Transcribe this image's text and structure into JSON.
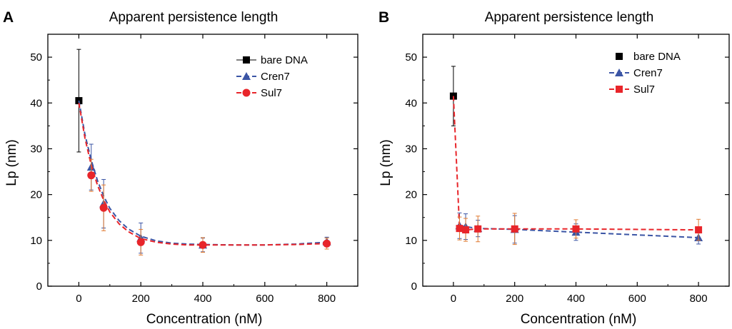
{
  "chart_data": [
    {
      "panel": "A",
      "type": "scatter",
      "title": "Apparent persistence length",
      "xlabel": "Concentration (nM)",
      "ylabel": "Lp (nm)",
      "xlim": [
        -100,
        900
      ],
      "ylim": [
        0,
        55
      ],
      "xticks": [
        0,
        200,
        400,
        600,
        800
      ],
      "yticks": [
        0,
        10,
        20,
        30,
        40,
        50
      ],
      "legend_position": "top-right",
      "series": [
        {
          "name": "bare DNA",
          "marker": "square",
          "color": "#000000",
          "line": "solid",
          "points": [
            {
              "x": 0,
              "y": 40.5,
              "err": 11.2
            }
          ]
        },
        {
          "name": "Cren7",
          "marker": "triangle",
          "color": "#3b55a5",
          "line": "dashed",
          "points": [
            {
              "x": 40,
              "y": 26.0,
              "err": 5.0
            },
            {
              "x": 80,
              "y": 18.0,
              "err": 5.3
            },
            {
              "x": 200,
              "y": 10.5,
              "err": 3.3
            },
            {
              "x": 400,
              "y": 9.0,
              "err": 1.5
            },
            {
              "x": 800,
              "y": 9.7,
              "err": 1.0
            }
          ],
          "fit": [
            [
              0,
              40.5
            ],
            [
              20,
              33.0
            ],
            [
              40,
              27.5
            ],
            [
              60,
              23.1
            ],
            [
              80,
              19.7
            ],
            [
              100,
              17.0
            ],
            [
              130,
              14.3
            ],
            [
              160,
              12.5
            ],
            [
              200,
              10.9
            ],
            [
              250,
              9.9
            ],
            [
              300,
              9.4
            ],
            [
              350,
              9.2
            ],
            [
              400,
              9.1
            ],
            [
              500,
              9.0
            ],
            [
              600,
              9.0
            ],
            [
              700,
              9.2
            ],
            [
              800,
              9.6
            ]
          ]
        },
        {
          "name": "Sul7",
          "marker": "circle",
          "color": "#e8252a",
          "line": "dashed",
          "points": [
            {
              "x": 40,
              "y": 24.2,
              "err": 3.5
            },
            {
              "x": 80,
              "y": 17.1,
              "err": 5.0
            },
            {
              "x": 200,
              "y": 9.6,
              "err": 2.8
            },
            {
              "x": 400,
              "y": 9.0,
              "err": 1.6
            },
            {
              "x": 800,
              "y": 9.3,
              "err": 1.2
            }
          ],
          "fit": [
            [
              0,
              40.0
            ],
            [
              20,
              32.2
            ],
            [
              40,
              26.4
            ],
            [
              60,
              22.1
            ],
            [
              80,
              18.8
            ],
            [
              100,
              16.2
            ],
            [
              130,
              13.6
            ],
            [
              160,
              11.9
            ],
            [
              200,
              10.4
            ],
            [
              250,
              9.6
            ],
            [
              300,
              9.2
            ],
            [
              350,
              9.0
            ],
            [
              400,
              9.0
            ],
            [
              500,
              9.0
            ],
            [
              600,
              9.0
            ],
            [
              700,
              9.1
            ],
            [
              800,
              9.3
            ]
          ]
        }
      ]
    },
    {
      "panel": "B",
      "type": "scatter",
      "title": "Apparent persistence length",
      "xlabel": "Concentration (nM)",
      "ylabel": "Lp (nm)",
      "xlim": [
        -100,
        900
      ],
      "ylim": [
        0,
        55
      ],
      "xticks": [
        0,
        200,
        400,
        600,
        800
      ],
      "yticks": [
        0,
        10,
        20,
        30,
        40,
        50
      ],
      "legend_position": "top-right",
      "series": [
        {
          "name": "bare DNA",
          "marker": "square",
          "color": "#000000",
          "line": "none",
          "points": [
            {
              "x": 0,
              "y": 41.5,
              "err": 6.5
            }
          ]
        },
        {
          "name": "Cren7",
          "marker": "triangle",
          "color": "#3b55a5",
          "line": "dashed",
          "points": [
            {
              "x": 20,
              "y": 13.2,
              "err": 2.8
            },
            {
              "x": 40,
              "y": 13.0,
              "err": 2.8
            },
            {
              "x": 80,
              "y": 12.6,
              "err": 1.8
            },
            {
              "x": 200,
              "y": 12.4,
              "err": 3.0
            },
            {
              "x": 400,
              "y": 11.8,
              "err": 1.8
            },
            {
              "x": 800,
              "y": 10.6,
              "err": 1.4
            }
          ],
          "fit": [
            [
              20,
              13.2
            ],
            [
              40,
              13.0
            ],
            [
              80,
              12.6
            ],
            [
              200,
              12.4
            ],
            [
              400,
              11.8
            ],
            [
              800,
              10.6
            ]
          ]
        },
        {
          "name": "Sul7",
          "marker": "square",
          "color": "#e8252a",
          "line": "dashed",
          "points": [
            {
              "x": 20,
              "y": 12.6,
              "err": 2.5
            },
            {
              "x": 40,
              "y": 12.3,
              "err": 2.5
            },
            {
              "x": 80,
              "y": 12.5,
              "err": 2.8
            },
            {
              "x": 200,
              "y": 12.5,
              "err": 3.4
            },
            {
              "x": 400,
              "y": 12.5,
              "err": 2.0
            },
            {
              "x": 800,
              "y": 12.3,
              "err": 2.3
            }
          ],
          "fit": [
            [
              0,
              41.5
            ],
            [
              20,
              12.6
            ],
            [
              40,
              12.3
            ],
            [
              80,
              12.5
            ],
            [
              200,
              12.5
            ],
            [
              400,
              12.5
            ],
            [
              800,
              12.3
            ]
          ]
        }
      ]
    }
  ]
}
